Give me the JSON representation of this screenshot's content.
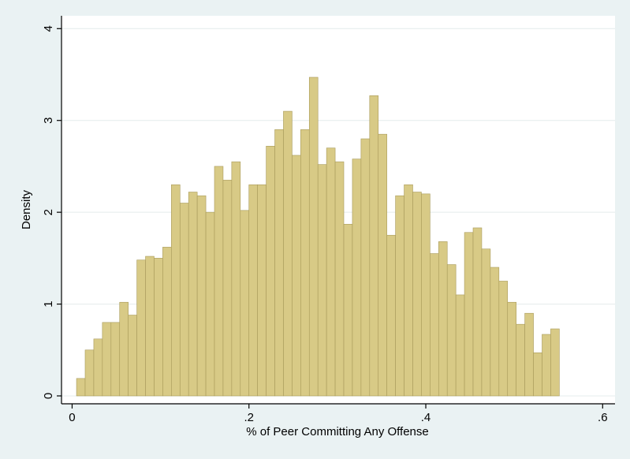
{
  "chart_data": {
    "type": "histogram",
    "x_label": "% of Peer Committing Any Offense",
    "y_label": "Density",
    "color": "#d8ca86",
    "edge_color": "#a89a5a",
    "grid": true,
    "bins": [
      0.005,
      0.01475,
      0.0245,
      0.03425,
      0.044,
      0.05375,
      0.0635,
      0.07325,
      0.083,
      0.09275,
      0.1025,
      0.11225,
      0.122,
      0.13175,
      0.1415,
      0.15125,
      0.161,
      0.17075,
      0.1805,
      0.19025,
      0.2,
      0.20975,
      0.2195,
      0.22925,
      0.239,
      0.24875,
      0.2585,
      0.26825,
      0.278,
      0.28775,
      0.2975,
      0.30725,
      0.317,
      0.32675,
      0.3365,
      0.34625,
      0.356,
      0.36575,
      0.3755,
      0.38525,
      0.395,
      0.40475,
      0.4145,
      0.42425,
      0.434,
      0.44375,
      0.4535,
      0.46325,
      0.473,
      0.48275,
      0.4925,
      0.50225,
      0.512,
      0.52175,
      0.5315,
      0.54125,
      0.551
    ],
    "values": [
      0.19,
      0.5,
      0.62,
      0.8,
      0.8,
      1.02,
      0.88,
      1.48,
      1.52,
      1.5,
      1.62,
      2.3,
      2.1,
      2.22,
      2.18,
      2.0,
      2.5,
      2.35,
      2.55,
      2.02,
      2.3,
      2.3,
      2.72,
      2.9,
      3.1,
      2.62,
      2.9,
      3.47,
      2.52,
      2.7,
      2.55,
      1.87,
      2.58,
      2.8,
      3.27,
      2.85,
      1.75,
      2.18,
      2.3,
      2.22,
      2.2,
      1.55,
      1.68,
      1.43,
      1.1,
      1.78,
      1.83,
      1.6,
      1.4,
      1.25,
      1.02,
      0.78,
      0.9,
      0.47,
      0.67,
      0.73
    ],
    "xlim": [
      -0.012,
      0.614
    ],
    "ylim": [
      -0.086,
      4.14
    ],
    "xticks": [
      0,
      {
        "value": 0.2,
        "label": ".2"
      },
      {
        "value": 0.4,
        "label": ".4"
      },
      {
        "value": 0.6,
        "label": ".6"
      }
    ],
    "yticks": [
      0,
      1,
      2,
      3,
      4
    ]
  }
}
